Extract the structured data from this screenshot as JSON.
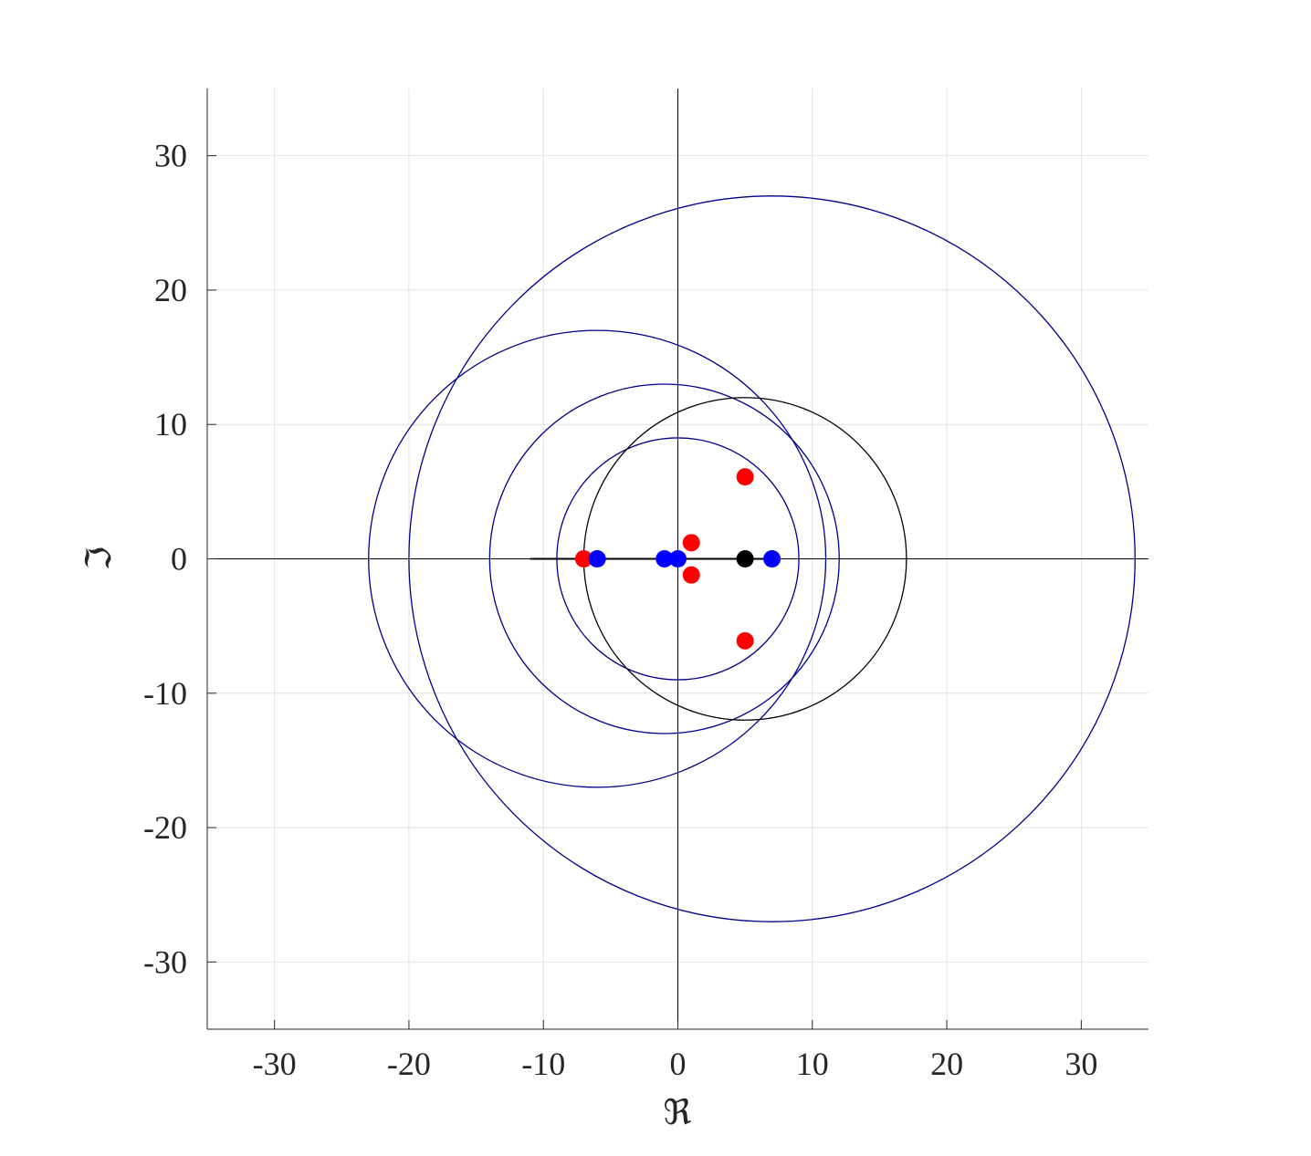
{
  "chart_data": {
    "type": "scatter",
    "title": "",
    "xlabel": "ℜ",
    "ylabel": "ℑ",
    "xlim": [
      -35,
      35
    ],
    "ylim": [
      -35,
      35
    ],
    "grid": true,
    "xticks": [
      -30,
      -20,
      -10,
      0,
      10,
      20,
      30
    ],
    "yticks": [
      -30,
      -20,
      -10,
      0,
      10,
      20,
      30
    ],
    "tick_labels": [
      "-30",
      "-20",
      "-10",
      "0",
      "10",
      "20",
      "30"
    ],
    "reference_lines": [
      {
        "orientation": "horizontal",
        "value": 0,
        "color": "#000000"
      },
      {
        "orientation": "vertical",
        "value": 0,
        "color": "#000000"
      }
    ],
    "real_axis_segment": {
      "x": [
        -11,
        7
      ],
      "y": 0,
      "color": "#000000"
    },
    "circles": [
      {
        "center": [
          7,
          0
        ],
        "radius": 27,
        "color": "#00008b"
      },
      {
        "center": [
          -6,
          0
        ],
        "radius": 17,
        "color": "#00008b"
      },
      {
        "center": [
          -1,
          0
        ],
        "radius": 13,
        "color": "#00008b"
      },
      {
        "center": [
          0,
          0
        ],
        "radius": 9,
        "color": "#00008b"
      },
      {
        "center": [
          5,
          0
        ],
        "radius": 12,
        "color": "#000000"
      }
    ],
    "series": [
      {
        "color": "#ff0000",
        "points": [
          [
            -7,
            0
          ],
          [
            1,
            1.2
          ],
          [
            1,
            -1.2
          ],
          [
            5,
            6.1
          ],
          [
            5,
            -6.1
          ]
        ]
      },
      {
        "color": "#0000ff",
        "points": [
          [
            -6,
            0
          ],
          [
            -1,
            0
          ],
          [
            0,
            0
          ],
          [
            7,
            0
          ]
        ]
      },
      {
        "color": "#000000",
        "points": [
          [
            5,
            0
          ]
        ]
      }
    ]
  }
}
